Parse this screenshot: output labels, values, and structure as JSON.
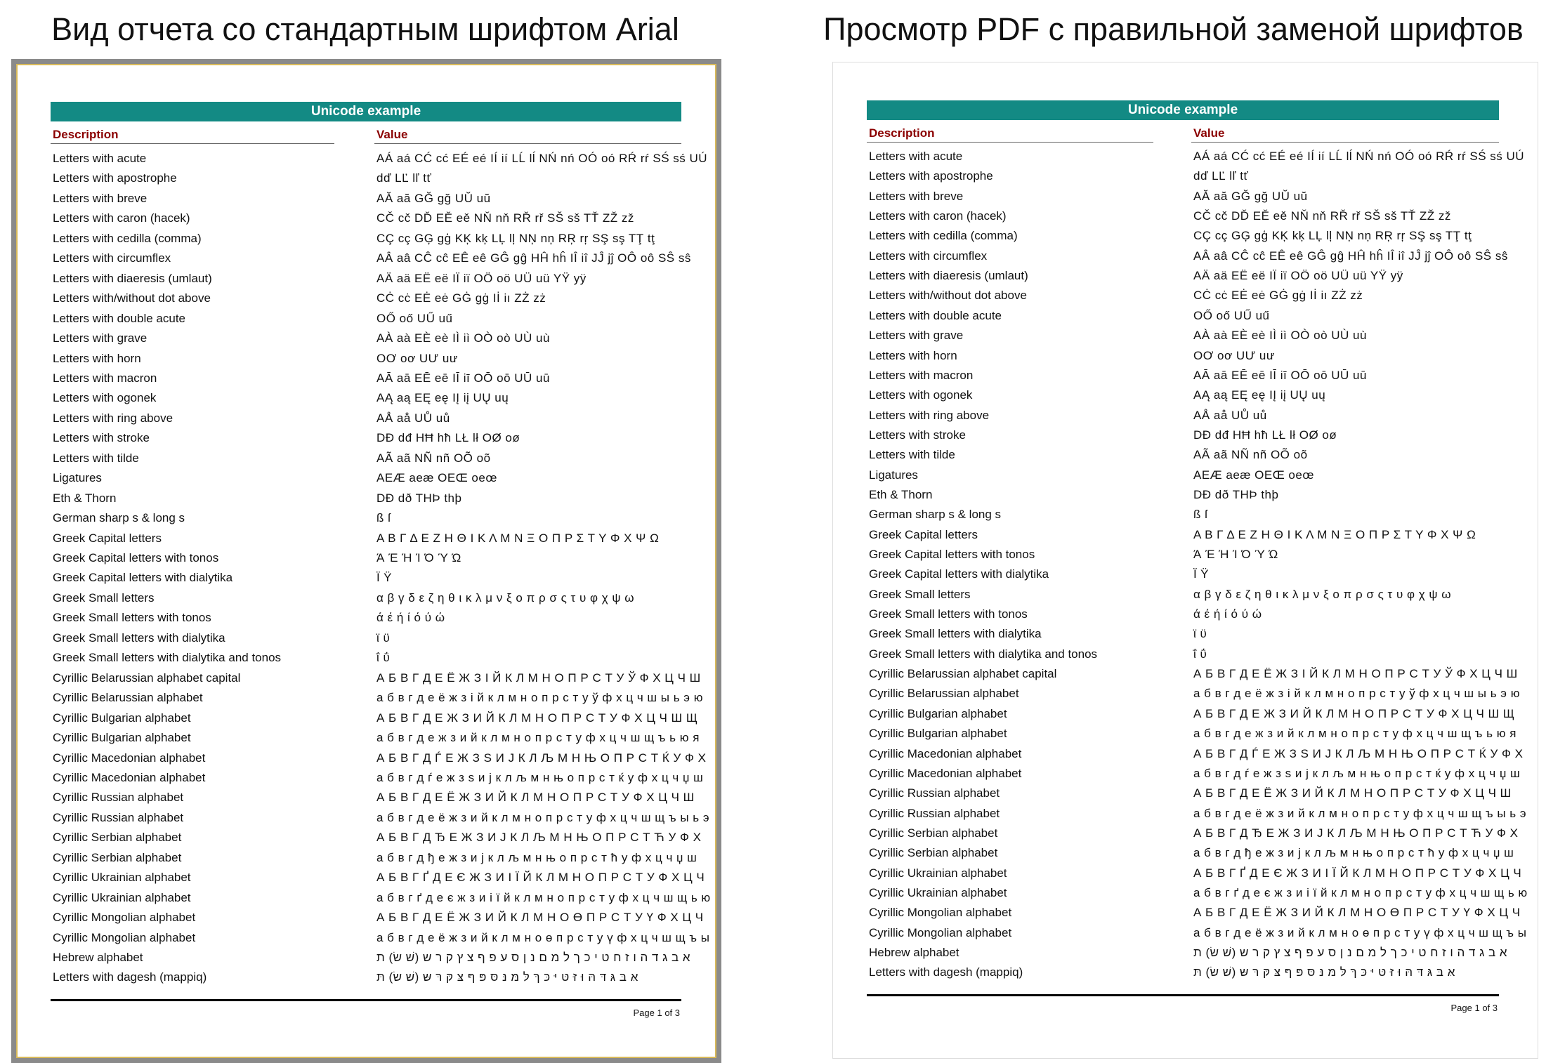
{
  "panels": [
    {
      "title": "Вид отчета со стандартным шрифтом Arial"
    },
    {
      "title": "Просмотр PDF с правильной заменой шрифтов"
    }
  ],
  "report": {
    "header": "Unicode example",
    "columns": [
      "Description",
      "Value"
    ],
    "rows": [
      [
        "Letters with acute",
        "AÁ aá CĆ cć EÉ eé IÍ ií LĹ lĺ NŃ nń OÓ oó RŔ rŕ SŚ sś UÚ"
      ],
      [
        "Letters with apostrophe",
        "dď LĽ lľ tť"
      ],
      [
        "Letters with breve",
        "AĂ aă GĞ gğ UŬ uŭ"
      ],
      [
        "Letters with caron (hacek)",
        "CČ cč DĎ EĚ eě NŇ nň RŘ rř SŠ sš TŤ ZŽ zž"
      ],
      [
        "Letters with cedilla (comma)",
        "CÇ cç GĢ gģ KĶ kķ LĻ lļ NŅ nņ RŖ rŗ SŞ sş TŢ tţ"
      ],
      [
        "Letters with circumflex",
        "AÂ aâ CĈ cĉ EÊ eê GĜ gĝ HĤ hĥ IÎ iî JĴ jĵ OÔ oô SŜ sŝ"
      ],
      [
        "Letters with diaeresis (umlaut)",
        "AÄ aä EË eë IÏ iï OÖ oö UÜ uü YŸ yÿ"
      ],
      [
        "Letters with/without dot above",
        "CĊ cċ EĖ eė GĠ gġ Iİ iı ZŻ zż"
      ],
      [
        "Letters with double acute",
        "OŐ oő UŰ uű"
      ],
      [
        "Letters with grave",
        "AÀ aà EÈ eè IÌ iì OÒ oò UÙ uù"
      ],
      [
        "Letters with horn",
        "OƠ oơ UƯ uư"
      ],
      [
        "Letters with macron",
        "AĀ aā EĒ eē IĪ iī OŌ oō UŪ uū"
      ],
      [
        "Letters with ogonek",
        "AĄ aą EĘ eę IĮ iį UŲ uų"
      ],
      [
        "Letters with ring above",
        "AÅ aå UŮ uů"
      ],
      [
        "Letters with stroke",
        "DĐ dđ HĦ hħ LŁ lł OØ oø"
      ],
      [
        "Letters with tilde",
        "AÃ aã NÑ nñ OÕ oõ"
      ],
      [
        "Ligatures",
        "AEÆ aeæ OEŒ oeœ"
      ],
      [
        "Eth & Thorn",
        "DĐ dð THÞ thþ"
      ],
      [
        "German sharp s & long s",
        "ß ſ"
      ],
      [
        "Greek Capital letters",
        "Α Β Γ Δ Ε Ζ Η Θ Ι Κ Λ Μ Ν Ξ Ο Π Ρ Σ Τ Υ Φ Χ Ψ Ω"
      ],
      [
        "Greek Capital letters with tonos",
        "Ά Έ Ή Ί Ό Ύ Ώ"
      ],
      [
        "Greek Capital letters with dialytika",
        "Ϊ Ϋ"
      ],
      [
        "Greek Small letters",
        "α β γ δ ε ζ η θ ι κ λ μ ν ξ ο π ρ σ ς τ υ φ χ ψ ω"
      ],
      [
        "Greek Small letters with tonos",
        "ά έ ή ί ό ύ ώ"
      ],
      [
        "Greek Small letters with dialytika",
        "ϊ ϋ"
      ],
      [
        "Greek Small letters with dialytika and tonos",
        "ΐ ΰ"
      ],
      [
        "Cyrillic Belarussian alphabet capital",
        "А Б В Г Д Е Ё Ж З І Й К Л М Н О П Р С Т У Ў Ф Х Ц Ч Ш"
      ],
      [
        "Cyrillic Belarussian alphabet",
        "а б в г д е ё ж з і й к л м н о п р с т у ў ф х ц ч ш ы ь э ю"
      ],
      [
        "Cyrillic Bulgarian alphabet",
        "А Б В Г Д Е Ж З И Й К Л М Н О П Р С Т У Ф Х Ц Ч Ш Щ"
      ],
      [
        "Cyrillic Bulgarian alphabet",
        "а б в г д е ж з и й к л м н о п р с т у ф х ц ч ш щ ъ ь ю я"
      ],
      [
        "Cyrillic Macedonian alphabet",
        "А Б В Г Д Ѓ Е Ж З Ѕ И Ј К Л Љ М Н Њ О П Р С Т Ќ У Ф Х"
      ],
      [
        "Cyrillic Macedonian alphabet",
        "а б в г д ѓ е ж з ѕ и ј к л љ м н њ о п р с т ќ у ф х ц ч џ ш"
      ],
      [
        "Cyrillic Russian alphabet",
        "А Б В Г Д Е Ё Ж З И Й К Л М Н О П Р С Т У Ф Х Ц Ч Ш"
      ],
      [
        "Cyrillic Russian alphabet",
        "а б в г д е ё ж з и й к л м н о п р с т у ф х ц ч ш щ ъ ы ь э"
      ],
      [
        "Cyrillic Serbian alphabet",
        "А Б В Г Д Ђ Е Ж З И Ј К Л Љ М Н Њ О П Р С Т Ћ У Ф Х"
      ],
      [
        "Cyrillic Serbian alphabet",
        "а б в г д ђ е ж з и ј к л љ м н њ о п р с т ћ у ф х ц ч џ ш"
      ],
      [
        "Cyrillic Ukrainian alphabet",
        "А Б В Г Ґ Д Е Є Ж З И І Ї Й К Л М Н О П Р С Т У Ф Х Ц Ч"
      ],
      [
        "Cyrillic Ukrainian alphabet",
        "а б в г ґ д е є ж з и і ї й к л м н о п р с т у ф х ц ч ш щ ь ю"
      ],
      [
        "Cyrillic Mongolian alphabet",
        "А Б В Г Д Е Ё Ж З И Й К Л М Н О Ө П Р С Т У Ү Ф Х Ц Ч"
      ],
      [
        "Cyrillic Mongolian alphabet",
        "а б в г д е ё ж з и й к л м н о ө п р с т у ү ф х ц ч ш щ ъ ы"
      ],
      [
        "Hebrew alphabet",
        "א ב ג ד ה ו ז ח ט י כ ך ל מ ם נ ן ס ע פ ף צ ץ ק ר ש (שׁ שׂ) ת"
      ],
      [
        "Letters with dagesh (mappiq)",
        "אּ בּ גּ דּ הּ וּ זּ טּ יּ כּ ךּ לּ מּ נּ סּ פּ ףּ צּ קּ רּ שּ (שׁ שׂ) תּ"
      ]
    ],
    "footer": "Page 1 of 3"
  }
}
